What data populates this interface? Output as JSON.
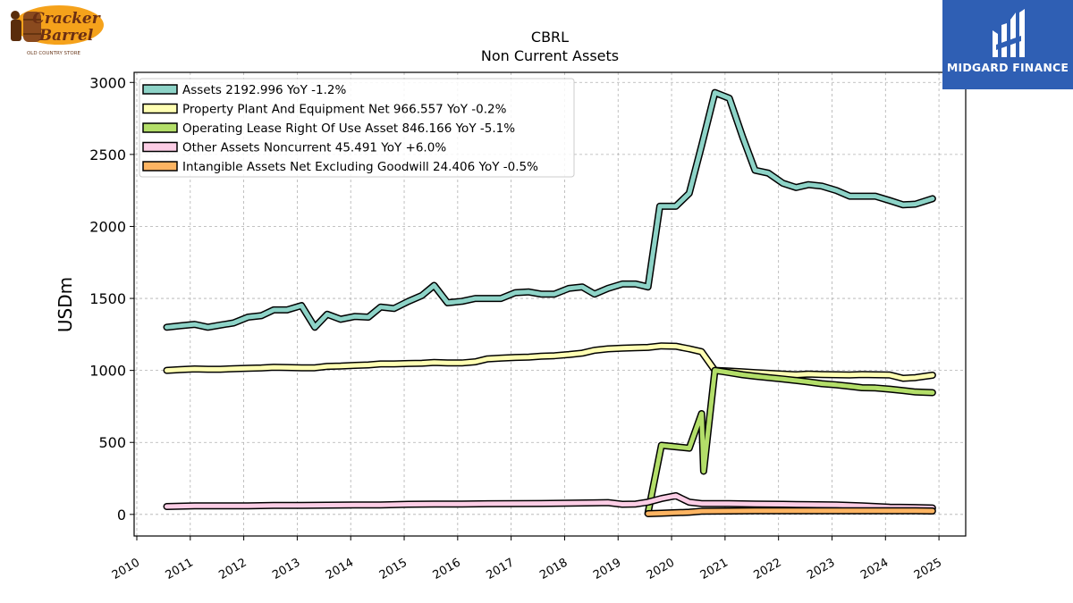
{
  "logos": {
    "left_brand": "Cracker Barrel",
    "left_sub": "OLD COUNTRY STORE",
    "right_brand": "MIDGARD FINANCE"
  },
  "chart_data": {
    "type": "line",
    "title": "CBRL",
    "subtitle": "Non Current  Assets",
    "xlabel": "",
    "ylabel": "USDm",
    "xlim": [
      2009.95,
      2025.5
    ],
    "ylim": [
      -150,
      3070
    ],
    "x_ticks": [
      "2010",
      "2011",
      "2012",
      "2013",
      "2014",
      "2015",
      "2016",
      "2017",
      "2018",
      "2019",
      "2020",
      "2021",
      "2022",
      "2023",
      "2024",
      "2025"
    ],
    "y_ticks": [
      "0",
      "500",
      "1000",
      "1500",
      "2000",
      "2500",
      "3000"
    ],
    "grid": true,
    "legend_position": "top-left",
    "series": [
      {
        "name": "Assets  2192.996 YoY -1.2%",
        "color": "#8dd3c7",
        "points": [
          [
            2010.56,
            1300
          ],
          [
            2010.81,
            1310
          ],
          [
            2011.08,
            1320
          ],
          [
            2011.33,
            1300
          ],
          [
            2011.56,
            1315
          ],
          [
            2011.81,
            1330
          ],
          [
            2012.08,
            1370
          ],
          [
            2012.33,
            1380
          ],
          [
            2012.56,
            1420
          ],
          [
            2012.81,
            1420
          ],
          [
            2013.08,
            1450
          ],
          [
            2013.33,
            1300
          ],
          [
            2013.56,
            1390
          ],
          [
            2013.81,
            1355
          ],
          [
            2014.08,
            1375
          ],
          [
            2014.33,
            1370
          ],
          [
            2014.56,
            1440
          ],
          [
            2014.81,
            1430
          ],
          [
            2015.08,
            1480
          ],
          [
            2015.33,
            1520
          ],
          [
            2015.56,
            1590
          ],
          [
            2015.81,
            1470
          ],
          [
            2016.08,
            1480
          ],
          [
            2016.33,
            1500
          ],
          [
            2016.56,
            1500
          ],
          [
            2016.81,
            1500
          ],
          [
            2017.08,
            1540
          ],
          [
            2017.33,
            1545
          ],
          [
            2017.56,
            1530
          ],
          [
            2017.81,
            1530
          ],
          [
            2018.08,
            1570
          ],
          [
            2018.33,
            1580
          ],
          [
            2018.56,
            1530
          ],
          [
            2018.81,
            1570
          ],
          [
            2019.08,
            1600
          ],
          [
            2019.33,
            1600
          ],
          [
            2019.56,
            1580
          ],
          [
            2019.78,
            2140
          ],
          [
            2020.08,
            2140
          ],
          [
            2020.33,
            2230
          ],
          [
            2020.56,
            2560
          ],
          [
            2020.81,
            2930
          ],
          [
            2021.08,
            2890
          ],
          [
            2021.33,
            2620
          ],
          [
            2021.56,
            2390
          ],
          [
            2021.81,
            2370
          ],
          [
            2022.08,
            2300
          ],
          [
            2022.33,
            2270
          ],
          [
            2022.56,
            2290
          ],
          [
            2022.81,
            2280
          ],
          [
            2023.08,
            2250
          ],
          [
            2023.33,
            2210
          ],
          [
            2023.56,
            2210
          ],
          [
            2023.81,
            2210
          ],
          [
            2024.08,
            2180
          ],
          [
            2024.33,
            2150
          ],
          [
            2024.56,
            2155
          ],
          [
            2024.88,
            2193
          ]
        ]
      },
      {
        "name": "Property Plant And Equipment Net  966.557 YoY -0.2%",
        "color": "#ffffb3",
        "points": [
          [
            2010.56,
            1000
          ],
          [
            2010.81,
            1005
          ],
          [
            2011.08,
            1010
          ],
          [
            2011.33,
            1008
          ],
          [
            2011.56,
            1008
          ],
          [
            2011.81,
            1012
          ],
          [
            2012.08,
            1015
          ],
          [
            2012.33,
            1017
          ],
          [
            2012.56,
            1022
          ],
          [
            2012.81,
            1020
          ],
          [
            2013.08,
            1018
          ],
          [
            2013.33,
            1018
          ],
          [
            2013.56,
            1028
          ],
          [
            2013.81,
            1030
          ],
          [
            2014.08,
            1035
          ],
          [
            2014.33,
            1038
          ],
          [
            2014.56,
            1045
          ],
          [
            2014.81,
            1045
          ],
          [
            2015.08,
            1048
          ],
          [
            2015.33,
            1050
          ],
          [
            2015.56,
            1055
          ],
          [
            2015.81,
            1052
          ],
          [
            2016.08,
            1052
          ],
          [
            2016.33,
            1060
          ],
          [
            2016.56,
            1080
          ],
          [
            2016.81,
            1085
          ],
          [
            2017.08,
            1090
          ],
          [
            2017.33,
            1093
          ],
          [
            2017.56,
            1098
          ],
          [
            2017.81,
            1102
          ],
          [
            2018.08,
            1110
          ],
          [
            2018.33,
            1120
          ],
          [
            2018.56,
            1140
          ],
          [
            2018.81,
            1150
          ],
          [
            2019.08,
            1155
          ],
          [
            2019.33,
            1158
          ],
          [
            2019.56,
            1160
          ],
          [
            2019.81,
            1170
          ],
          [
            2020.08,
            1168
          ],
          [
            2020.33,
            1150
          ],
          [
            2020.56,
            1130
          ],
          [
            2020.81,
            1000
          ],
          [
            2021.08,
            995
          ],
          [
            2021.33,
            990
          ],
          [
            2021.56,
            985
          ],
          [
            2021.81,
            980
          ],
          [
            2022.08,
            975
          ],
          [
            2022.33,
            970
          ],
          [
            2022.56,
            975
          ],
          [
            2022.81,
            972
          ],
          [
            2023.08,
            970
          ],
          [
            2023.33,
            968
          ],
          [
            2023.56,
            972
          ],
          [
            2023.81,
            970
          ],
          [
            2024.08,
            968
          ],
          [
            2024.33,
            945
          ],
          [
            2024.56,
            950
          ],
          [
            2024.88,
            967
          ]
        ]
      },
      {
        "name": "Operating Lease Right Of Use Asset  846.166 YoY -5.1%",
        "color": "#b3de69",
        "points": [
          [
            2019.56,
            10
          ],
          [
            2019.81,
            480
          ],
          [
            2020.08,
            470
          ],
          [
            2020.33,
            460
          ],
          [
            2020.56,
            700
          ],
          [
            2020.6,
            300
          ],
          [
            2020.81,
            1000
          ],
          [
            2021.08,
            985
          ],
          [
            2021.33,
            970
          ],
          [
            2021.56,
            960
          ],
          [
            2021.81,
            950
          ],
          [
            2022.08,
            940
          ],
          [
            2022.33,
            930
          ],
          [
            2022.56,
            920
          ],
          [
            2022.81,
            908
          ],
          [
            2023.08,
            900
          ],
          [
            2023.33,
            890
          ],
          [
            2023.56,
            880
          ],
          [
            2023.81,
            878
          ],
          [
            2024.08,
            870
          ],
          [
            2024.33,
            860
          ],
          [
            2024.56,
            850
          ],
          [
            2024.88,
            846
          ]
        ]
      },
      {
        "name": "Other Assets Noncurrent  45.491 YoY +6.0%",
        "color": "#fccde5",
        "points": [
          [
            2010.56,
            55
          ],
          [
            2011.08,
            60
          ],
          [
            2011.56,
            60
          ],
          [
            2012.08,
            60
          ],
          [
            2012.56,
            62
          ],
          [
            2013.08,
            63
          ],
          [
            2013.56,
            64
          ],
          [
            2014.08,
            65
          ],
          [
            2014.56,
            66
          ],
          [
            2015.08,
            70
          ],
          [
            2015.56,
            72
          ],
          [
            2016.08,
            72
          ],
          [
            2016.56,
            74
          ],
          [
            2017.08,
            75
          ],
          [
            2017.56,
            76
          ],
          [
            2018.08,
            78
          ],
          [
            2018.56,
            80
          ],
          [
            2018.81,
            82
          ],
          [
            2019.08,
            70
          ],
          [
            2019.33,
            72
          ],
          [
            2019.56,
            85
          ],
          [
            2019.81,
            110
          ],
          [
            2020.08,
            130
          ],
          [
            2020.33,
            85
          ],
          [
            2020.56,
            75
          ],
          [
            2021.08,
            75
          ],
          [
            2021.56,
            72
          ],
          [
            2022.08,
            70
          ],
          [
            2022.56,
            68
          ],
          [
            2023.08,
            65
          ],
          [
            2023.56,
            60
          ],
          [
            2024.08,
            50
          ],
          [
            2024.56,
            48
          ],
          [
            2024.88,
            45
          ]
        ]
      },
      {
        "name": "Intangible Assets Net Excluding Goodwill  24.406 YoY -0.5%",
        "color": "#fdb462",
        "points": [
          [
            2019.56,
            5
          ],
          [
            2019.81,
            8
          ],
          [
            2020.08,
            12
          ],
          [
            2020.33,
            15
          ],
          [
            2020.56,
            22
          ],
          [
            2021.08,
            24
          ],
          [
            2021.56,
            25
          ],
          [
            2022.08,
            25
          ],
          [
            2022.56,
            25
          ],
          [
            2023.08,
            25
          ],
          [
            2023.56,
            25
          ],
          [
            2024.08,
            25
          ],
          [
            2024.56,
            25
          ],
          [
            2024.88,
            24
          ]
        ]
      }
    ]
  }
}
